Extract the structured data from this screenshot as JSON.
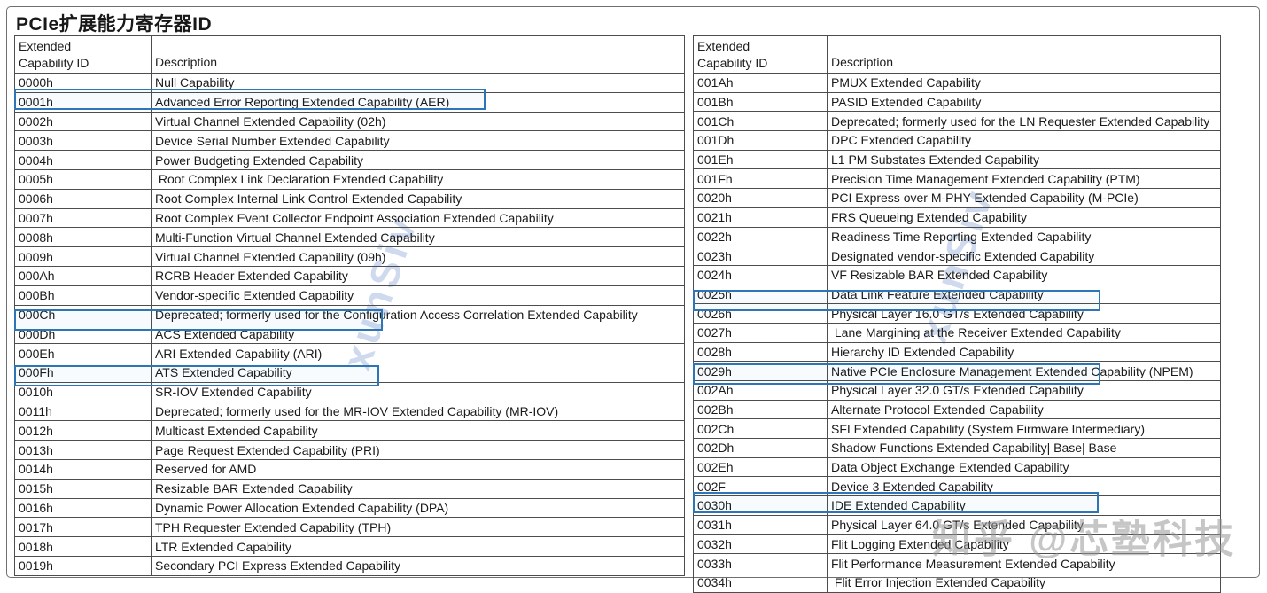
{
  "page_title": "PCIe扩展能力寄存器ID",
  "accent_color": "#2E75B6",
  "watermarks": {
    "diagonal_text": "xunSiv",
    "zhihu_text": "知乎 @芯塾科技"
  },
  "tables": {
    "left": {
      "headers": {
        "id_line1": "Extended",
        "id_line2": "Capability ID",
        "desc": "Description"
      },
      "rows": [
        {
          "id": "0000h",
          "desc": "Null Capability"
        },
        {
          "id": "0001h",
          "desc": "Advanced Error Reporting Extended Capability (AER)",
          "highlighted": true,
          "hl_w": 532
        },
        {
          "id": "0002h",
          "desc": "Virtual Channel Extended Capability (02h)"
        },
        {
          "id": "0003h",
          "desc": "Device Serial Number Extended Capability"
        },
        {
          "id": "0004h",
          "desc": "Power Budgeting Extended Capability"
        },
        {
          "id": "0005h",
          "desc": " Root Complex Link Declaration Extended Capability"
        },
        {
          "id": "0006h",
          "desc": "Root Complex Internal Link Control Extended Capability"
        },
        {
          "id": "0007h",
          "desc": "Root Complex Event Collector Endpoint Association Extended Capability"
        },
        {
          "id": "0008h",
          "desc": "Multi-Function Virtual Channel Extended Capability"
        },
        {
          "id": "0009h",
          "desc": "Virtual Channel Extended Capability (09h)"
        },
        {
          "id": "000Ah",
          "desc": "RCRB Header Extended Capability"
        },
        {
          "id": "000Bh",
          "desc": "Vendor-specific Extended Capability"
        },
        {
          "id": "000Ch",
          "desc": "Deprecated; formerly used for the Configuration Access Correlation Extended Capability"
        },
        {
          "id": "000Dh",
          "desc": "ACS Extended Capability",
          "highlighted": true,
          "hl_w": 416
        },
        {
          "id": "000Eh",
          "desc": "ARI Extended Capability (ARI)"
        },
        {
          "id": "000Fh",
          "desc": "ATS Extended Capability"
        },
        {
          "id": "0010h",
          "desc": "SR-IOV Extended Capability",
          "highlighted": true,
          "hl_w": 412
        },
        {
          "id": "0011h",
          "desc": "Deprecated; formerly used for the MR-IOV Extended Capability (MR-IOV)"
        },
        {
          "id": "0012h",
          "desc": "Multicast Extended Capability"
        },
        {
          "id": "0013h",
          "desc": "Page Request Extended Capability (PRI)"
        },
        {
          "id": "0014h",
          "desc": "Reserved for AMD"
        },
        {
          "id": "0015h",
          "desc": "Resizable BAR Extended Capability"
        },
        {
          "id": "0016h",
          "desc": "Dynamic Power Allocation Extended Capability (DPA)"
        },
        {
          "id": "0017h",
          "desc": "TPH Requester Extended Capability (TPH)"
        },
        {
          "id": "0018h",
          "desc": "LTR Extended Capability"
        },
        {
          "id": "0019h",
          "desc": "Secondary PCI Express Extended Capability"
        }
      ]
    },
    "right": {
      "headers": {
        "id_line1": "Extended",
        "id_line2": "Capability ID",
        "desc": "Description"
      },
      "rows": [
        {
          "id": "001Ah",
          "desc": "PMUX Extended Capability"
        },
        {
          "id": "001Bh",
          "desc": "PASID Extended Capability"
        },
        {
          "id": "001Ch",
          "desc": "Deprecated; formerly used for the LN Requester Extended Capability"
        },
        {
          "id": "001Dh",
          "desc": "DPC Extended Capability"
        },
        {
          "id": "001Eh",
          "desc": "L1 PM Substates Extended Capability"
        },
        {
          "id": "001Fh",
          "desc": "Precision Time Management Extended Capability (PTM)"
        },
        {
          "id": "0020h",
          "desc": "PCI Express over M-PHY Extended Capability (M-PCIe)"
        },
        {
          "id": "0021h",
          "desc": "FRS Queueing Extended Capability"
        },
        {
          "id": "0022h",
          "desc": "Readiness Time Reporting Extended Capability"
        },
        {
          "id": "0023h",
          "desc": "Designated vendor-specific Extended Capability"
        },
        {
          "id": "0024h",
          "desc": "VF Resizable BAR Extended Capability"
        },
        {
          "id": "0025h",
          "desc": "Data Link Feature Extended Capability"
        },
        {
          "id": "0026h",
          "desc": "Physical Layer 16.0 GT/s Extended Capability",
          "highlighted": true,
          "hl_w": 460
        },
        {
          "id": "0027h",
          "desc": " Lane Margining at the Receiver Extended Capability"
        },
        {
          "id": "0028h",
          "desc": "Hierarchy ID Extended Capability"
        },
        {
          "id": "0029h",
          "desc": "Native PCIe Enclosure Management Extended Capability (NPEM)"
        },
        {
          "id": "002Ah",
          "desc": "Physical Layer 32.0 GT/s Extended Capability",
          "highlighted": true,
          "hl_w": 460
        },
        {
          "id": "002Bh",
          "desc": "Alternate Protocol Extended Capability"
        },
        {
          "id": "002Ch",
          "desc": "SFI Extended Capability (System Firmware Intermediary)"
        },
        {
          "id": "002Dh",
          "desc": "Shadow Functions Extended Capability| Base| Base"
        },
        {
          "id": "002Eh",
          "desc": "Data Object Exchange Extended Capability"
        },
        {
          "id": "002F",
          "desc": "Device 3 Extended Capability"
        },
        {
          "id": "0030h",
          "desc": "IDE Extended Capability"
        },
        {
          "id": "0031h",
          "desc": "Physical Layer 64.0 GT/s Extended Capability",
          "highlighted": true,
          "hl_w": 458
        },
        {
          "id": "0032h",
          "desc": "Flit Logging Extended Capability"
        },
        {
          "id": "0033h",
          "desc": "Flit Performance Measurement Extended Capability"
        },
        {
          "id": "0034h",
          "desc": " Flit Error Injection Extended Capability"
        }
      ]
    }
  }
}
